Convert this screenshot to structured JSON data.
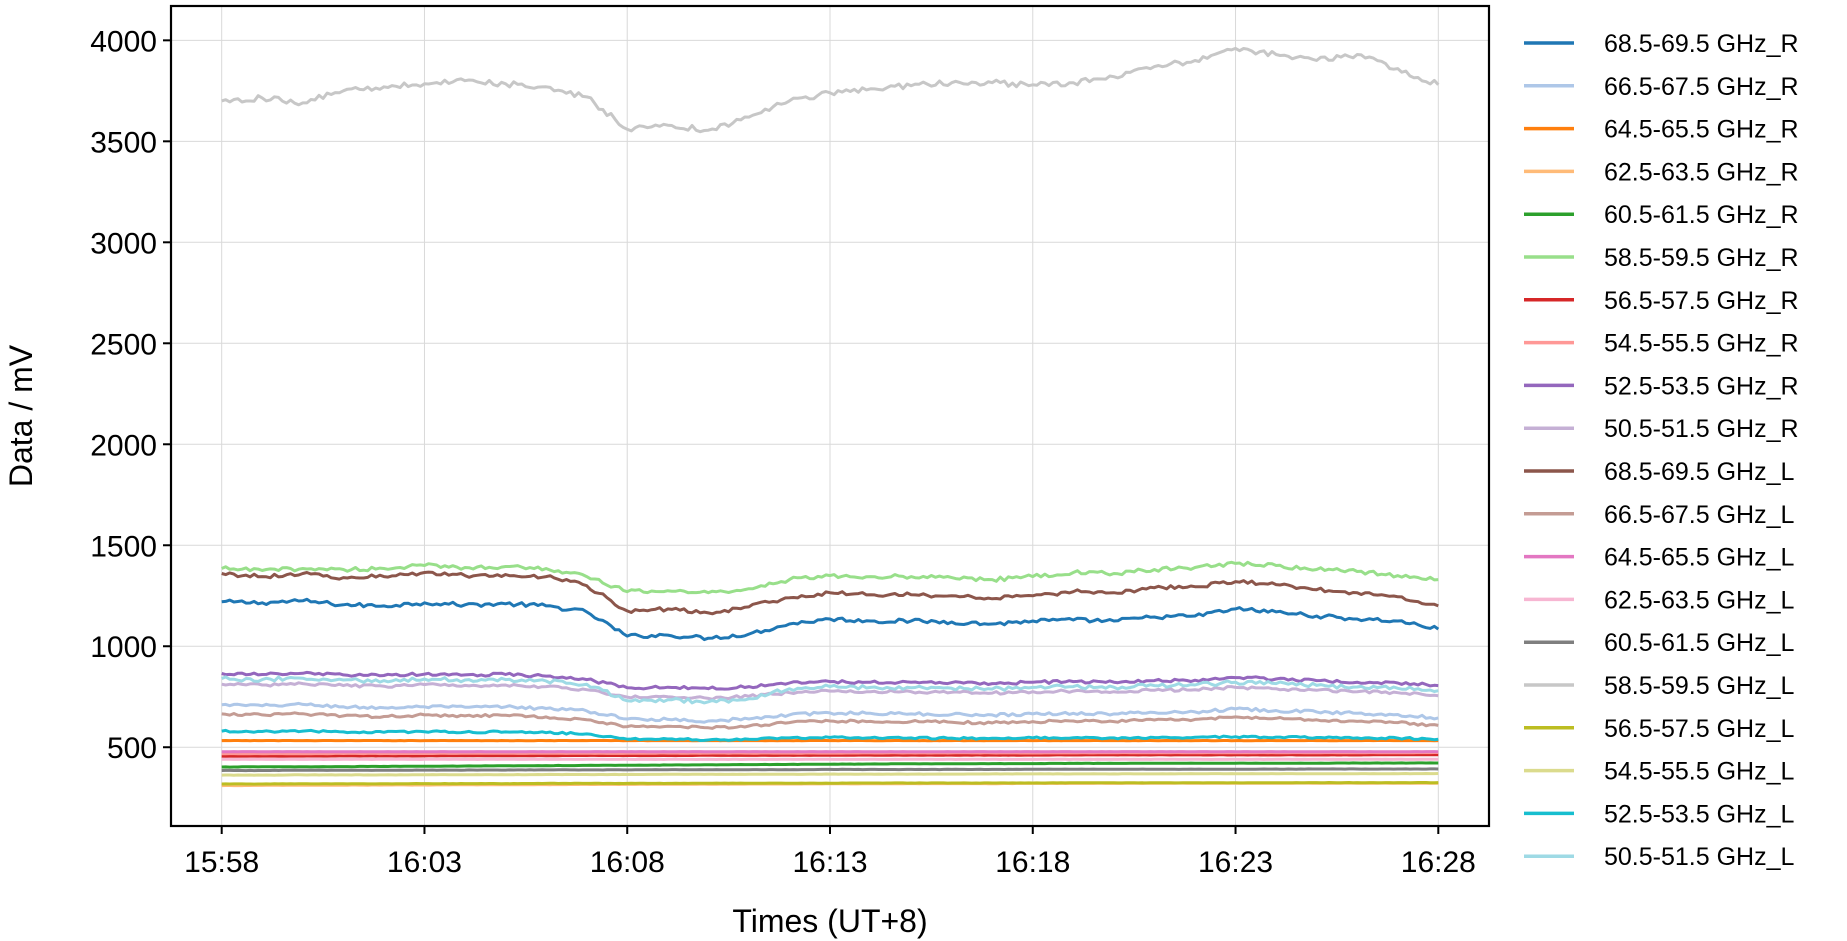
{
  "chart_data": {
    "type": "line",
    "title": "",
    "xlabel": "Times (UT+8)",
    "ylabel": "Data / mV",
    "x_ticks": [
      "15:58",
      "16:03",
      "16:08",
      "16:13",
      "16:18",
      "16:23",
      "16:28"
    ],
    "x_tick_minutes": [
      0,
      5,
      10,
      15,
      20,
      25,
      30
    ],
    "xlim_minutes": [
      -1.25,
      31.25
    ],
    "y_ticks": [
      500,
      1000,
      1500,
      2000,
      2500,
      3000,
      3500,
      4000
    ],
    "ylim": [
      110,
      4170
    ],
    "grid": true,
    "legend_position": "outside-right",
    "x": [
      0,
      1,
      2,
      3,
      4,
      5,
      6,
      7,
      8,
      9,
      10,
      11,
      12,
      13,
      14,
      15,
      16,
      17,
      18,
      19,
      20,
      21,
      22,
      23,
      24,
      25,
      26,
      27,
      28,
      29,
      30
    ],
    "series": [
      {
        "name": "68.5-69.5 GHz_R",
        "color": "#1f77b4",
        "values": [
          1220,
          1215,
          1225,
          1205,
          1200,
          1215,
          1205,
          1210,
          1200,
          1170,
          1050,
          1055,
          1040,
          1060,
          1110,
          1135,
          1125,
          1125,
          1120,
          1110,
          1125,
          1130,
          1125,
          1145,
          1150,
          1185,
          1170,
          1150,
          1135,
          1125,
          1085
        ]
      },
      {
        "name": "66.5-67.5 GHz_R",
        "color": "#aec7e8",
        "values": [
          710,
          705,
          712,
          700,
          695,
          700,
          698,
          700,
          692,
          680,
          640,
          638,
          630,
          640,
          660,
          670,
          668,
          665,
          662,
          660,
          665,
          668,
          665,
          672,
          675,
          690,
          682,
          675,
          668,
          662,
          645
        ]
      },
      {
        "name": "64.5-65.5 GHz_R",
        "color": "#ff7f0e",
        "values": [
          533,
          533,
          533,
          533,
          533,
          533,
          533,
          533,
          533,
          533,
          533,
          533,
          533,
          533,
          533,
          533,
          533,
          533,
          533,
          533,
          533,
          533,
          533,
          533,
          533,
          533,
          533,
          533,
          533,
          533,
          533
        ]
      },
      {
        "name": "62.5-63.5 GHz_R",
        "color": "#ffbb78",
        "values": [
          310,
          311,
          312,
          312,
          313,
          313,
          314,
          314,
          315,
          316,
          316,
          317,
          317,
          318,
          318,
          319,
          319,
          320,
          320,
          320,
          321,
          321,
          321,
          322,
          322,
          322,
          322,
          322,
          322,
          322,
          322
        ]
      },
      {
        "name": "60.5-61.5 GHz_R",
        "color": "#2ca02c",
        "values": [
          402,
          403,
          403,
          404,
          405,
          406,
          407,
          408,
          409,
          410,
          411,
          412,
          413,
          414,
          415,
          416,
          417,
          418,
          418,
          419,
          419,
          420,
          420,
          421,
          421,
          421,
          421,
          421,
          422,
          422,
          422
        ]
      },
      {
        "name": "58.5-59.5 GHz_R",
        "color": "#98df8a",
        "values": [
          1385,
          1375,
          1385,
          1380,
          1385,
          1400,
          1390,
          1395,
          1385,
          1345,
          1270,
          1275,
          1265,
          1285,
          1330,
          1350,
          1345,
          1345,
          1340,
          1330,
          1345,
          1365,
          1360,
          1380,
          1390,
          1410,
          1400,
          1380,
          1370,
          1350,
          1330
        ]
      },
      {
        "name": "56.5-57.5 GHz_R",
        "color": "#d62728",
        "values": [
          455,
          456,
          456,
          457,
          457,
          457,
          458,
          458,
          458,
          459,
          459,
          459,
          460,
          460,
          460,
          460,
          461,
          461,
          461,
          461,
          461,
          462,
          462,
          462,
          462,
          462,
          462,
          462,
          462,
          463,
          463
        ]
      },
      {
        "name": "54.5-55.5 GHz_R",
        "color": "#ff9896",
        "values": [
          468,
          468,
          468,
          469,
          469,
          469,
          470,
          470,
          470,
          470,
          470,
          471,
          471,
          471,
          471,
          471,
          472,
          472,
          472,
          472,
          472,
          472,
          473,
          473,
          473,
          473,
          473,
          473,
          473,
          473,
          474
        ]
      },
      {
        "name": "52.5-53.5 GHz_R",
        "color": "#9467bd",
        "values": [
          865,
          860,
          866,
          858,
          855,
          862,
          858,
          860,
          852,
          835,
          795,
          797,
          790,
          800,
          818,
          825,
          822,
          822,
          820,
          815,
          822,
          825,
          822,
          830,
          832,
          845,
          838,
          830,
          822,
          818,
          805
        ]
      },
      {
        "name": "50.5-51.5 GHz_R",
        "color": "#c5b0d5",
        "values": [
          812,
          808,
          815,
          805,
          802,
          810,
          806,
          808,
          800,
          785,
          748,
          750,
          742,
          752,
          770,
          778,
          775,
          775,
          772,
          768,
          775,
          778,
          775,
          782,
          785,
          796,
          790,
          782,
          775,
          770,
          755
        ]
      },
      {
        "name": "68.5-69.5 GHz_L",
        "color": "#8c564b",
        "values": [
          1360,
          1345,
          1360,
          1340,
          1345,
          1365,
          1350,
          1355,
          1345,
          1300,
          1175,
          1185,
          1165,
          1195,
          1240,
          1265,
          1255,
          1255,
          1250,
          1235,
          1250,
          1270,
          1265,
          1290,
          1295,
          1320,
          1305,
          1280,
          1265,
          1245,
          1200
        ]
      },
      {
        "name": "66.5-67.5 GHz_L",
        "color": "#c49c94",
        "values": [
          665,
          660,
          666,
          655,
          652,
          660,
          655,
          658,
          650,
          636,
          602,
          604,
          596,
          605,
          622,
          630,
          628,
          627,
          624,
          620,
          627,
          630,
          627,
          635,
          638,
          650,
          643,
          636,
          628,
          622,
          608
        ]
      },
      {
        "name": "64.5-65.5 GHz_L",
        "color": "#e377c2",
        "values": [
          478,
          478,
          478,
          478,
          478,
          478,
          478,
          478,
          478,
          478,
          478,
          478,
          478,
          478,
          478,
          478,
          478,
          478,
          478,
          478,
          478,
          478,
          478,
          478,
          478,
          478,
          478,
          478,
          478,
          478,
          478
        ]
      },
      {
        "name": "62.5-63.5 GHz_L",
        "color": "#f7b6d2",
        "values": [
          440,
          440,
          440,
          440,
          440,
          440,
          440,
          440,
          440,
          440,
          440,
          440,
          440,
          440,
          440,
          440,
          440,
          440,
          440,
          440,
          440,
          440,
          440,
          440,
          440,
          440,
          440,
          440,
          440,
          440,
          440
        ]
      },
      {
        "name": "60.5-61.5 GHz_L",
        "color": "#7f7f7f",
        "values": [
          385,
          385,
          386,
          386,
          386,
          387,
          387,
          387,
          388,
          388,
          388,
          389,
          389,
          389,
          389,
          390,
          390,
          390,
          390,
          390,
          391,
          391,
          391,
          391,
          391,
          391,
          392,
          392,
          392,
          392,
          392
        ]
      },
      {
        "name": "58.5-59.5 GHz_L",
        "color": "#c7c7c7",
        "values": [
          3700,
          3715,
          3690,
          3750,
          3770,
          3785,
          3800,
          3785,
          3770,
          3720,
          3560,
          3580,
          3555,
          3620,
          3700,
          3740,
          3760,
          3775,
          3790,
          3790,
          3780,
          3790,
          3820,
          3870,
          3900,
          3960,
          3930,
          3900,
          3930,
          3860,
          3780
        ]
      },
      {
        "name": "56.5-57.5 GHz_L",
        "color": "#bcbd22",
        "values": [
          318,
          318,
          319,
          319,
          319,
          320,
          320,
          320,
          321,
          321,
          321,
          321,
          322,
          322,
          322,
          322,
          323,
          323,
          323,
          323,
          323,
          324,
          324,
          324,
          324,
          324,
          324,
          325,
          325,
          325,
          325
        ]
      },
      {
        "name": "54.5-55.5 GHz_L",
        "color": "#dbdb8d",
        "values": [
          362,
          362,
          363,
          363,
          363,
          364,
          364,
          364,
          365,
          365,
          365,
          366,
          366,
          366,
          366,
          367,
          367,
          367,
          367,
          368,
          368,
          368,
          368,
          368,
          369,
          369,
          369,
          369,
          369,
          369,
          370
        ]
      },
      {
        "name": "52.5-53.5 GHz_L",
        "color": "#17becf",
        "values": [
          580,
          578,
          580,
          576,
          574,
          577,
          575,
          576,
          572,
          566,
          540,
          541,
          536,
          540,
          546,
          548,
          547,
          546,
          545,
          544,
          546,
          547,
          546,
          548,
          549,
          552,
          550,
          548,
          546,
          545,
          540
        ]
      },
      {
        "name": "50.5-51.5 GHz_L",
        "color": "#9edae5",
        "values": [
          840,
          835,
          842,
          833,
          830,
          838,
          833,
          835,
          828,
          812,
          730,
          735,
          725,
          740,
          790,
          800,
          796,
          795,
          792,
          788,
          796,
          800,
          797,
          805,
          808,
          822,
          815,
          806,
          798,
          792,
          780
        ]
      }
    ]
  }
}
